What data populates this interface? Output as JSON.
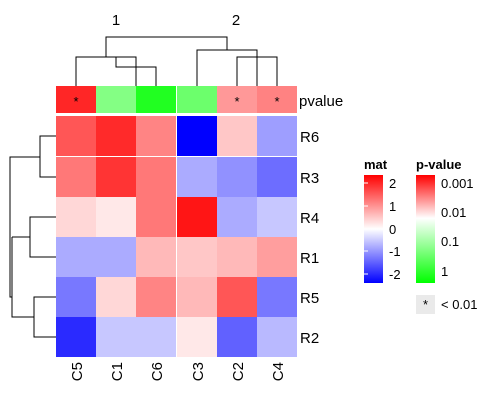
{
  "chart_data": {
    "type": "heatmap",
    "column_split_labels": [
      "1",
      "2"
    ],
    "columns": [
      "C5",
      "C1",
      "C6",
      "C3",
      "C2",
      "C4"
    ],
    "rows": [
      "R6",
      "R3",
      "R4",
      "R1",
      "R5",
      "R2"
    ],
    "annotation": {
      "name": "pvalue",
      "values": [
        0.0015,
        0.06,
        0.5,
        0.1,
        0.005,
        0.004
      ],
      "significant": [
        true,
        false,
        false,
        false,
        true,
        true
      ],
      "mark": "*"
    },
    "matrix": [
      [
        1.2,
        1.6,
        0.8,
        -2.0,
        0.3,
        -0.6
      ],
      [
        0.9,
        1.5,
        0.9,
        -0.5,
        -0.7,
        -1.0
      ],
      [
        0.2,
        0.1,
        0.9,
        1.8,
        -0.5,
        -0.3
      ],
      [
        -0.5,
        -0.5,
        0.4,
        0.3,
        0.4,
        0.6
      ],
      [
        -0.9,
        0.2,
        0.8,
        0.4,
        1.2,
        -0.9
      ],
      [
        -1.6,
        -0.3,
        -0.3,
        0.1,
        -1.1,
        -0.4
      ]
    ],
    "legends": {
      "mat": {
        "title": "mat",
        "ticks": [
          "2",
          "1",
          "0",
          "-1",
          "-2"
        ],
        "colors": {
          "low": "#0000ff",
          "mid": "#ffffff",
          "high": "#ff0000"
        }
      },
      "pvalue": {
        "title": "p-value",
        "ticks": [
          "0.001",
          "0.01",
          "0.1",
          "1"
        ],
        "colors": {
          "low": "#ff0000",
          "mid": "#ffffff",
          "high": "#00ff00"
        }
      },
      "significance": {
        "symbol": "*",
        "label": "< 0.01"
      }
    }
  }
}
